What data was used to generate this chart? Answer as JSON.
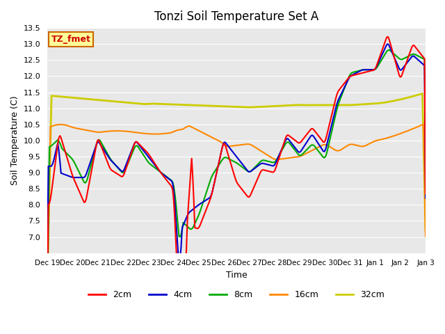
{
  "title": "Tonzi Soil Temperature Set A",
  "ylabel": "Soil Temperature (C)",
  "xlabel": "Time",
  "ylim": [
    6.5,
    13.5
  ],
  "yticks": [
    7.0,
    7.5,
    8.0,
    8.5,
    9.0,
    9.5,
    10.0,
    10.5,
    11.0,
    11.5,
    12.0,
    12.5,
    13.0,
    13.5
  ],
  "xtick_labels": [
    "Dec 19",
    "Dec 20",
    "Dec 21",
    "Dec 22",
    "Dec 23",
    "Dec 24",
    "Dec 25",
    "Dec 26",
    "Dec 27",
    "Dec 28",
    "Dec 29",
    "Dec 30",
    "Dec 31",
    "Jan 1",
    "Jan 2",
    "Jan 3"
  ],
  "annotation_text": "TZ_fmet",
  "annotation_bg": "#ffff99",
  "annotation_border": "#cc6600",
  "annotation_text_color": "#cc0000",
  "bg_color": "#e8e8e8",
  "series": {
    "2cm": {
      "color": "#ff0000",
      "lw": 1.5
    },
    "4cm": {
      "color": "#0000cc",
      "lw": 1.5
    },
    "8cm": {
      "color": "#00aa00",
      "lw": 1.5
    },
    "16cm": {
      "color": "#ff8800",
      "lw": 1.5
    },
    "32cm": {
      "color": "#cccc00",
      "lw": 2.0
    }
  },
  "legend_labels": [
    "2cm",
    "4cm",
    "8cm",
    "16cm",
    "32cm"
  ],
  "legend_colors": [
    "#ff0000",
    "#0000cc",
    "#00aa00",
    "#ff8800",
    "#cccc00"
  ]
}
